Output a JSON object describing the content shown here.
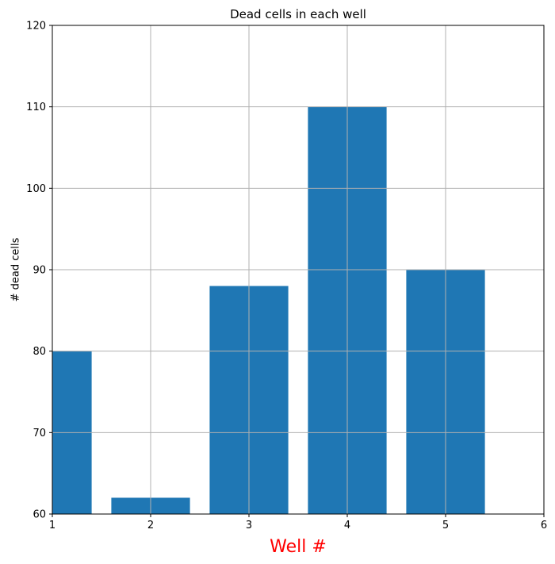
{
  "chart_data": {
    "type": "bar",
    "title": "Dead cells in each well",
    "xlabel": "Well #",
    "ylabel": "# dead cells",
    "x": [
      1,
      2,
      3,
      4,
      5
    ],
    "values": [
      80,
      62,
      88,
      110,
      90
    ],
    "bar_width": 0.8,
    "xlim": [
      1,
      6
    ],
    "ylim": [
      60,
      120
    ],
    "xticks": [
      1,
      2,
      3,
      4,
      5,
      6
    ],
    "yticks": [
      60,
      70,
      80,
      90,
      100,
      110,
      120
    ],
    "grid": true,
    "colors": {
      "bar": "#1f77b4",
      "grid": "#b0b0b0",
      "xlabel": "#ff0000",
      "axis": "#000000"
    }
  }
}
